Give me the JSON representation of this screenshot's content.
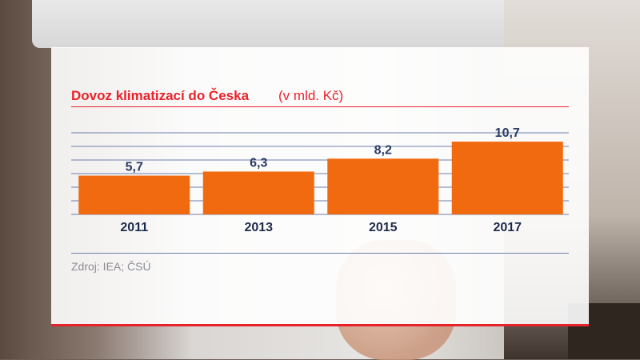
{
  "chart_data": {
    "type": "bar",
    "title": "Dovoz klimatizací do Česka",
    "subtitle": "(v mld. Kč)",
    "categories": [
      "2011",
      "2013",
      "2015",
      "2017"
    ],
    "values": [
      5.7,
      6.3,
      8.2,
      10.7
    ],
    "value_labels": [
      "5,7",
      "6,3",
      "8,2",
      "10,7"
    ],
    "ylim": [
      0,
      12
    ],
    "grid": true,
    "bar_color": "#f26a10"
  },
  "source": "Zdroj: IEA; ČSÚ",
  "colors": {
    "accent": "#e8222b",
    "grid": "#6d7fae",
    "label": "#2b3a63"
  }
}
